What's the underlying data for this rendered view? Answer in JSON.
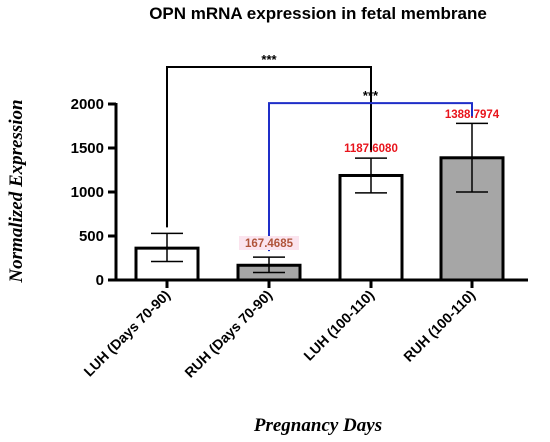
{
  "chart_data": {
    "type": "bar",
    "title": "OPN mRNA expression in fetal membrane",
    "xlabel": "Pregnancy Days",
    "ylabel": "Normalized Expression",
    "categories": [
      "LUH  (Days 70-90)",
      "RUH (Days 70-90)",
      "LUH (100-110)",
      "RUH (100-110)"
    ],
    "values": [
      362,
      167.4685,
      1187.608,
      1388.7974
    ],
    "error_low": [
      210,
      85,
      990,
      1000
    ],
    "error_high": [
      530,
      260,
      1385,
      1780
    ],
    "bar_colors": [
      "#ffffff",
      "#a6a6a6",
      "#ffffff",
      "#a6a6a6"
    ],
    "data_labels": [
      {
        "index": 1,
        "text": "167.4685",
        "color": "#b0543a",
        "background": "#fbe4ee"
      },
      {
        "index": 2,
        "text": "1187.6080",
        "color": "#e8141c"
      },
      {
        "index": 3,
        "text": "1388.7974",
        "color": "#e8141c"
      }
    ],
    "significance": [
      {
        "from": 0,
        "to": 2,
        "label": "***",
        "color": "#000000",
        "y": 2420
      },
      {
        "from": 1,
        "to": 3,
        "label": "***",
        "color": "#1f2ec8",
        "y": 2010
      }
    ],
    "yticks": [
      0,
      500,
      1000,
      1500,
      2000
    ],
    "ylim": [
      0,
      2000
    ],
    "grid": false
  }
}
